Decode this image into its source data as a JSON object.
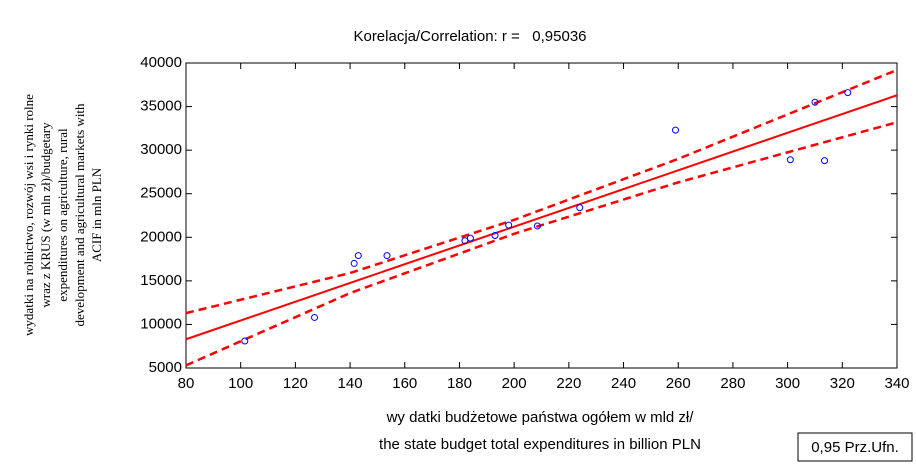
{
  "chart_data": {
    "type": "scatter",
    "title": "Korelacja/Correlation: r =   0,95036",
    "x_label": [
      "wy datki budżetowe państwa ogółem w mld zł/",
      "the state budget total expenditures in billion PLN"
    ],
    "y_label": [
      "wydatki na rolnictwo, rozwój wsi i rynki rolne",
      "wraz z KRUS (w mln zł)/budgetary",
      "expenditures on agriculture, rural",
      "development and agricultural markets with",
      "ACIF in mln PLN"
    ],
    "band_label": "0,95 Prz.Ufn.",
    "x": [
      101.5,
      127,
      141.5,
      143,
      153.5,
      182,
      184,
      193,
      198,
      208.5,
      224,
      259,
      301,
      310,
      313.5,
      322
    ],
    "values": [
      8100,
      10800,
      17000,
      17900,
      17900,
      19600,
      19900,
      20200,
      21400,
      21300,
      23400,
      32300,
      28900,
      35500,
      28800,
      36600
    ],
    "color": "#0000ff",
    "fit": {
      "x": [
        80,
        140,
        200,
        260,
        340
      ],
      "values": [
        8300,
        14760,
        21220,
        27690,
        36300
      ],
      "color": "#ff0000"
    },
    "upper": {
      "x": [
        80,
        140,
        200,
        260,
        340
      ],
      "values": [
        11300,
        15900,
        22000,
        29000,
        39200
      ],
      "color": "#ff0000"
    },
    "lower": {
      "x": [
        80,
        140,
        200,
        260,
        340
      ],
      "values": [
        5300,
        13600,
        20400,
        26300,
        33200
      ],
      "color": "#ff0000"
    },
    "xlim": [
      80,
      340
    ],
    "xticks": [
      80,
      100,
      120,
      140,
      160,
      180,
      200,
      220,
      240,
      260,
      280,
      300,
      320,
      340
    ],
    "ylim": [
      5000,
      40000
    ],
    "yticks": [
      5000,
      10000,
      15000,
      20000,
      25000,
      30000,
      35000,
      40000
    ]
  }
}
